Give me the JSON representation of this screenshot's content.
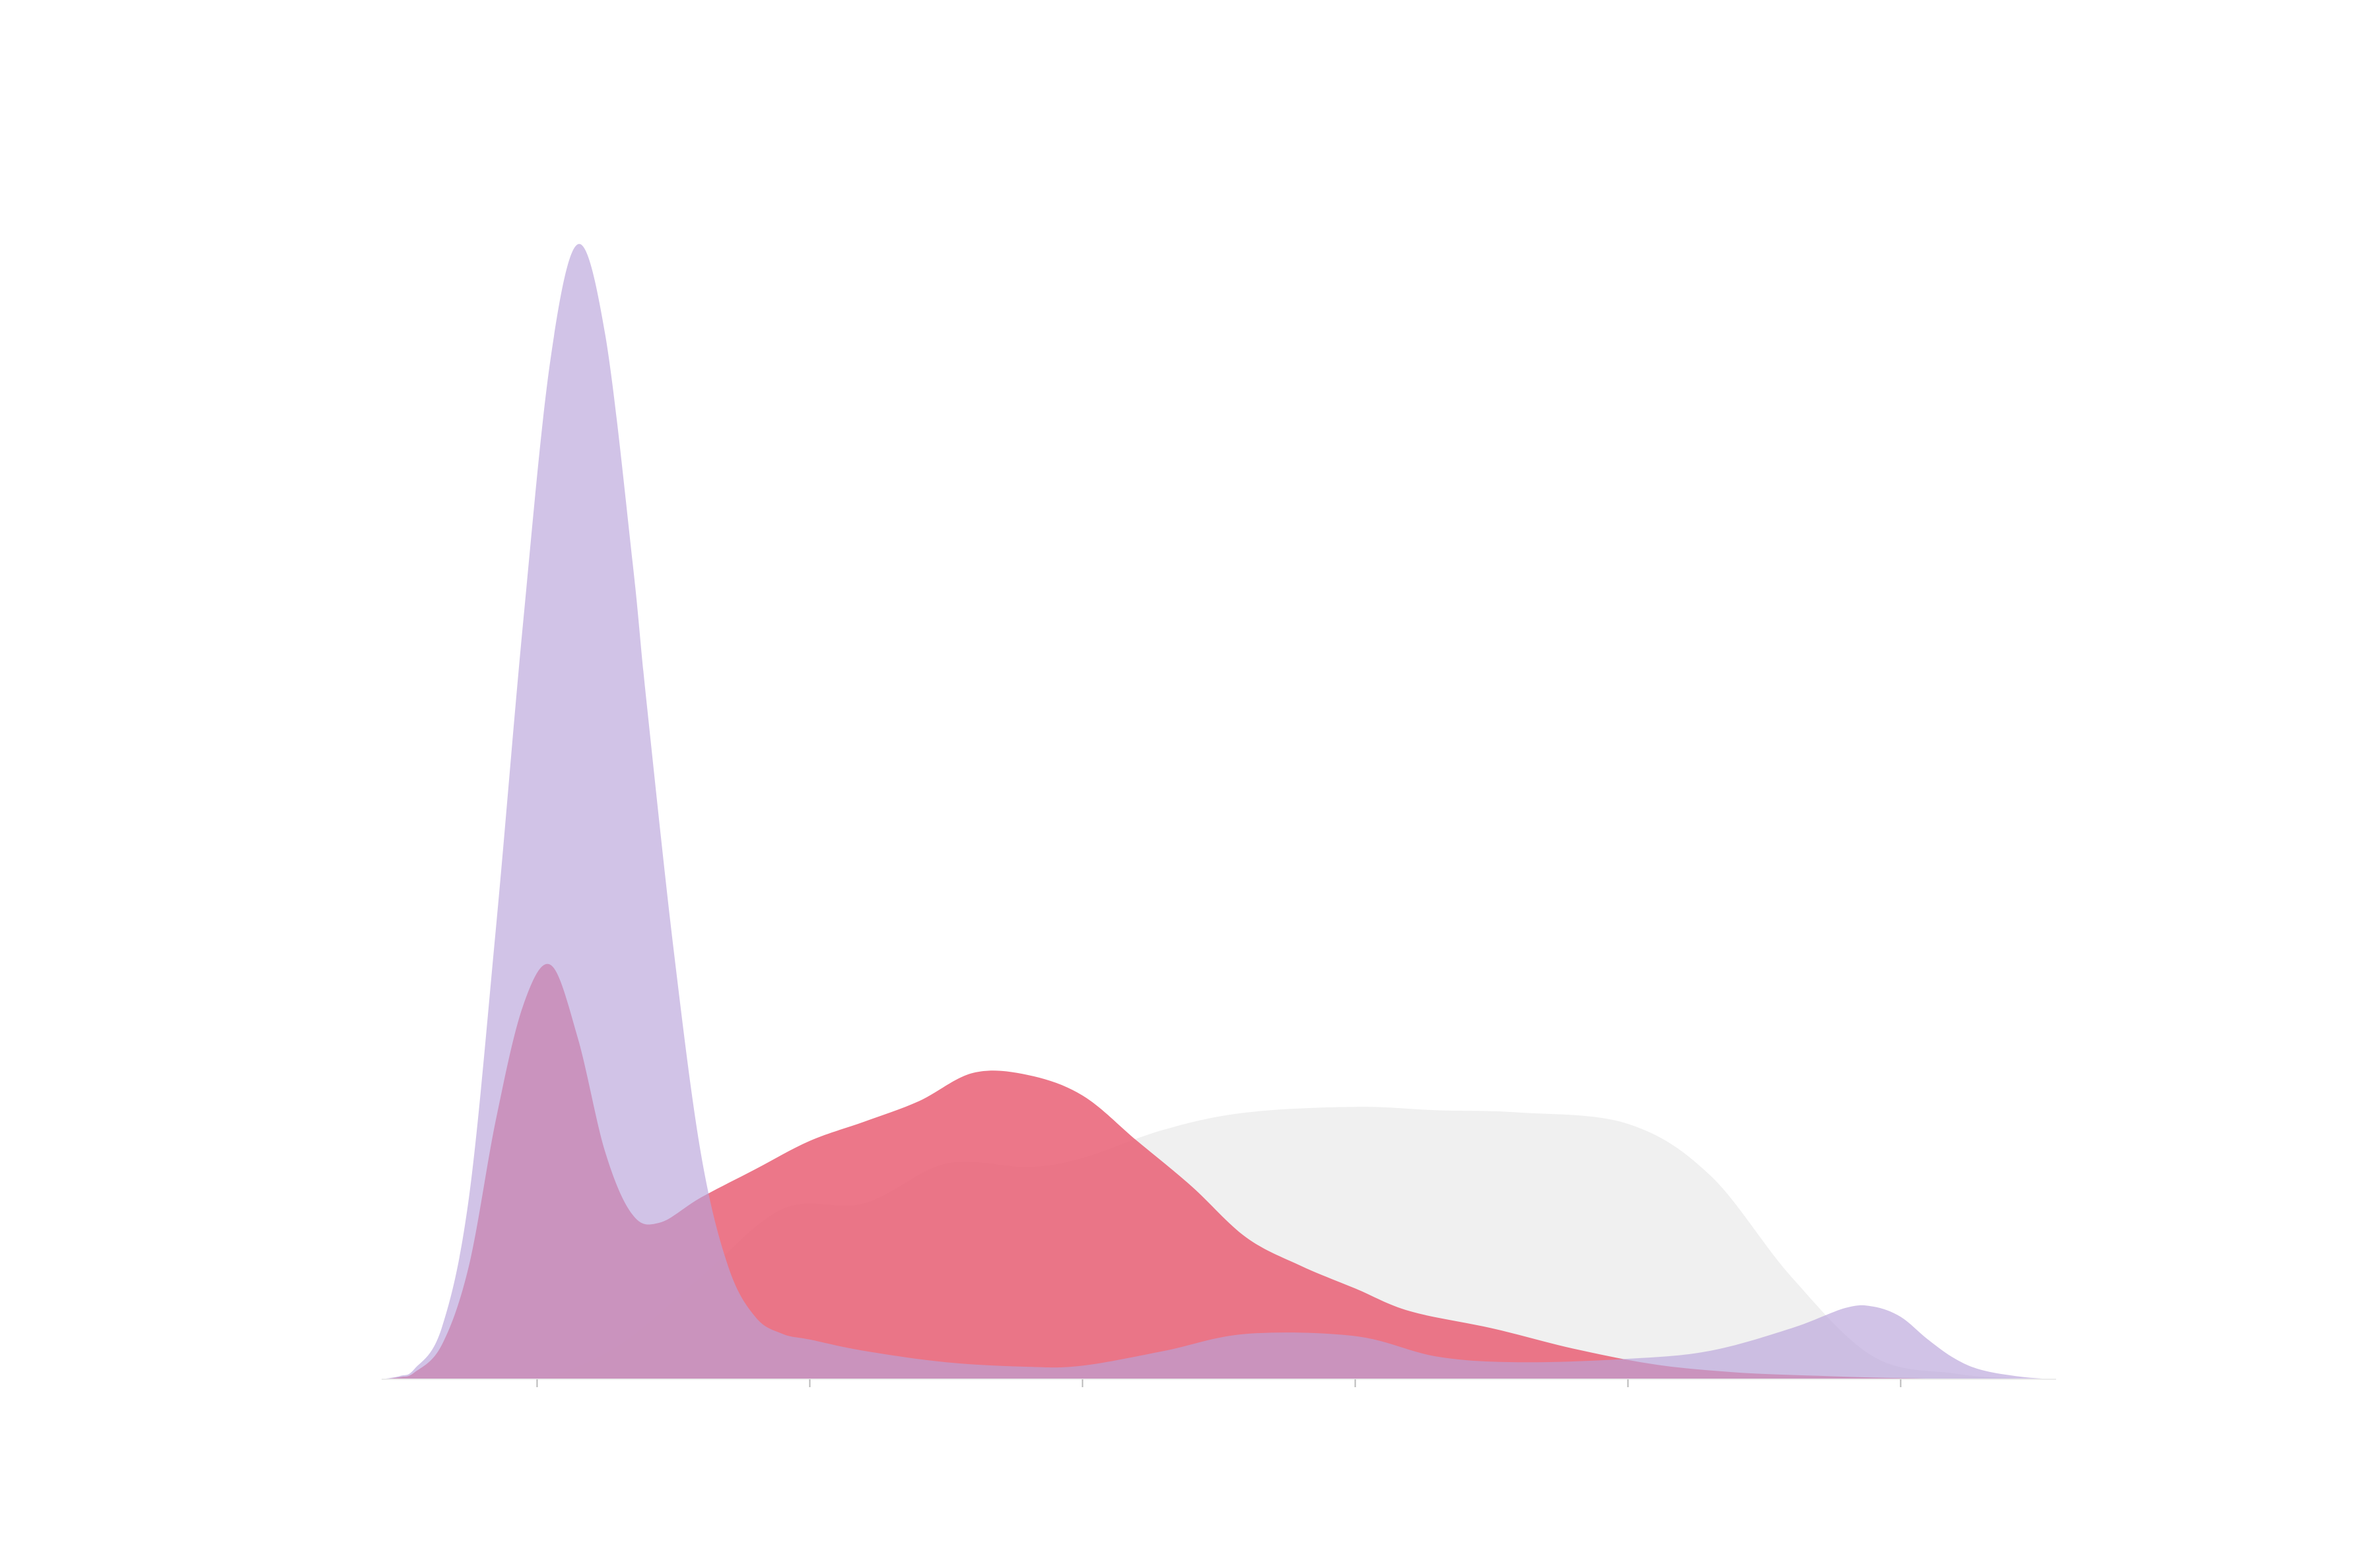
{
  "chart_data": {
    "type": "area",
    "title": "",
    "xlabel": "",
    "ylabel": "",
    "xlim": [
      -0.57,
      5.57
    ],
    "ylim": [
      0,
      1.0
    ],
    "xticks": [
      0,
      1,
      2,
      3,
      4,
      5
    ],
    "tick_labels_visible": false,
    "grid": false,
    "legend": "none",
    "series": [
      {
        "color": "#f0f0f0",
        "opacity": 1.0,
        "x": [
          -0.57,
          -0.3,
          0,
          0.3,
          0.6,
          0.9,
          1.2,
          1.5,
          1.8,
          2.0,
          2.3,
          2.6,
          3.0,
          3.3,
          3.6,
          4.0,
          4.3,
          4.6,
          4.9,
          5.2,
          5.4,
          5.57
        ],
        "y": [
          0,
          0,
          0.0,
          0.03,
          0.09,
          0.15,
          0.155,
          0.19,
          0.187,
          0.195,
          0.22,
          0.235,
          0.24,
          0.237,
          0.235,
          0.225,
          0.18,
          0.09,
          0.02,
          0.005,
          0.001,
          0
        ]
      },
      {
        "color": "#e8596f",
        "opacity": 0.82,
        "x": [
          -0.57,
          -0.5,
          -0.45,
          -0.35,
          -0.25,
          -0.15,
          -0.05,
          0.05,
          0.15,
          0.25,
          0.35,
          0.45,
          0.6,
          0.8,
          1.0,
          1.2,
          1.4,
          1.6,
          1.8,
          2.0,
          2.2,
          2.4,
          2.6,
          2.8,
          3.0,
          3.2,
          3.5,
          3.8,
          4.1,
          4.4,
          4.7,
          5.0,
          5.3,
          5.57
        ],
        "y": [
          0,
          0.002,
          0.006,
          0.03,
          0.1,
          0.23,
          0.33,
          0.365,
          0.3,
          0.2,
          0.145,
          0.138,
          0.16,
          0.185,
          0.21,
          0.227,
          0.245,
          0.27,
          0.268,
          0.25,
          0.21,
          0.17,
          0.125,
          0.1,
          0.08,
          0.06,
          0.045,
          0.027,
          0.013,
          0.006,
          0.003,
          0.001,
          0.0,
          0
        ]
      },
      {
        "color": "#b9a3da",
        "opacity": 0.65,
        "x": [
          -0.57,
          -0.5,
          -0.45,
          -0.35,
          -0.25,
          -0.15,
          -0.05,
          0.05,
          0.15,
          0.25,
          0.35,
          0.4,
          0.5,
          0.6,
          0.7,
          0.8,
          0.9,
          1.0,
          1.2,
          1.5,
          1.8,
          2.0,
          2.3,
          2.6,
          3.0,
          3.3,
          3.6,
          4.0,
          4.3,
          4.6,
          4.8,
          4.9,
          5.0,
          5.1,
          5.2,
          5.3,
          5.45,
          5.57
        ],
        "y": [
          0,
          0.003,
          0.009,
          0.045,
          0.16,
          0.4,
          0.67,
          0.9,
          1.0,
          0.92,
          0.72,
          0.6,
          0.38,
          0.2,
          0.1,
          0.055,
          0.04,
          0.035,
          0.025,
          0.015,
          0.011,
          0.012,
          0.025,
          0.04,
          0.038,
          0.02,
          0.015,
          0.018,
          0.025,
          0.045,
          0.063,
          0.064,
          0.055,
          0.035,
          0.018,
          0.008,
          0.002,
          0
        ]
      }
    ]
  }
}
